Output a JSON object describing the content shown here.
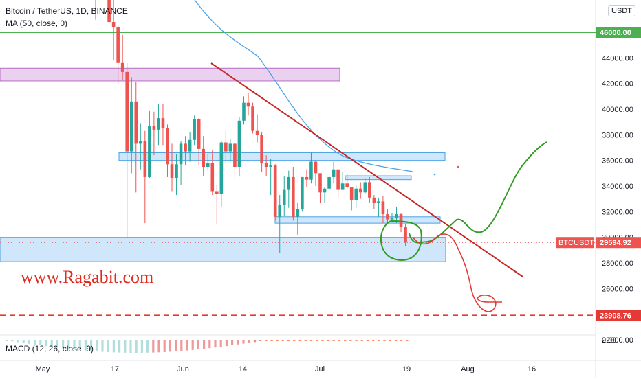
{
  "header": {
    "symbol": "Bitcoin / TetherUS, 1D, BINANCE",
    "ma_label": "MA (50, close, 0)",
    "currency_badge": "USDT"
  },
  "indicator": {
    "macd_label": "MACD (12, 26, close, 9)"
  },
  "watermark": "www.Ragabit.com",
  "colors": {
    "up": "#26a69a",
    "down": "#ef5350",
    "ma": "#4aa3e6",
    "trendline": "#c62828",
    "projection_up": "#2e9e1f",
    "projection_down": "#e53935",
    "support_zone": "#cfe6fb",
    "resistance_zone": "#ead1ef",
    "resistance_line": "#4caf50"
  },
  "chart_data": {
    "type": "candlestick",
    "x_ticks": [
      "May",
      "17",
      "Jun",
      "14",
      "Jul",
      "19",
      "Aug",
      "16"
    ],
    "y_ticks": [
      "22000.00",
      "24000.00",
      "26000.00",
      "28000.00",
      "30000.00",
      "32000.00",
      "34000.00",
      "36000.00",
      "38000.00",
      "40000.00",
      "42000.00",
      "44000.00"
    ],
    "y_range": [
      21000,
      48500
    ],
    "price_labels": [
      {
        "label": "BTCUSDT",
        "value": "29594.92",
        "level": 29594.92,
        "color": "#ef5350"
      },
      {
        "label": "",
        "value": "46000.00",
        "level": 46000,
        "color": "#4caf50"
      },
      {
        "label": "",
        "value": "23908.76",
        "level": 23908.76,
        "color": "#e53935"
      }
    ],
    "candles": [
      {
        "date": "May 12",
        "open": 56700,
        "high": 57800,
        "low": 46980,
        "close": 49500
      },
      {
        "date": "May 13",
        "open": 49500,
        "high": 51300,
        "low": 46000,
        "close": 49700
      },
      {
        "date": "May 14",
        "open": 49700,
        "high": 51500,
        "low": 48800,
        "close": 49900
      },
      {
        "date": "May 15",
        "open": 49900,
        "high": 50700,
        "low": 46700,
        "close": 46800
      },
      {
        "date": "May 16",
        "open": 46800,
        "high": 49700,
        "low": 43800,
        "close": 46400
      },
      {
        "date": "May 17",
        "open": 46400,
        "high": 46600,
        "low": 42000,
        "close": 43600
      },
      {
        "date": "May 18",
        "open": 43600,
        "high": 45800,
        "low": 42300,
        "close": 42900
      },
      {
        "date": "May 19",
        "open": 42900,
        "high": 43600,
        "low": 30000,
        "close": 36700
      },
      {
        "date": "May 20",
        "open": 36700,
        "high": 42500,
        "low": 35000,
        "close": 40600
      },
      {
        "date": "May 21",
        "open": 40600,
        "high": 42100,
        "low": 33500,
        "close": 37300
      },
      {
        "date": "May 22",
        "open": 37300,
        "high": 38900,
        "low": 35300,
        "close": 37500
      },
      {
        "date": "May 23",
        "open": 37500,
        "high": 38300,
        "low": 31100,
        "close": 34700
      },
      {
        "date": "May 24",
        "open": 34700,
        "high": 39900,
        "low": 34600,
        "close": 38700
      },
      {
        "date": "May 25",
        "open": 38700,
        "high": 39800,
        "low": 36400,
        "close": 38400
      },
      {
        "date": "May 26",
        "open": 38400,
        "high": 40400,
        "low": 37200,
        "close": 39300
      },
      {
        "date": "May 27",
        "open": 39300,
        "high": 40400,
        "low": 37200,
        "close": 38500
      },
      {
        "date": "May 28",
        "open": 38500,
        "high": 38800,
        "low": 34700,
        "close": 35700
      },
      {
        "date": "May 29",
        "open": 35700,
        "high": 37300,
        "low": 33600,
        "close": 34600
      },
      {
        "date": "May 30",
        "open": 34600,
        "high": 36500,
        "low": 33300,
        "close": 35700
      },
      {
        "date": "May 31",
        "open": 35700,
        "high": 37500,
        "low": 34100,
        "close": 37300
      },
      {
        "date": "Jun 1",
        "open": 37300,
        "high": 37900,
        "low": 35600,
        "close": 36700
      },
      {
        "date": "Jun 2",
        "open": 36700,
        "high": 38200,
        "low": 35900,
        "close": 37600
      },
      {
        "date": "Jun 3",
        "open": 37600,
        "high": 39500,
        "low": 37200,
        "close": 39200
      },
      {
        "date": "Jun 4",
        "open": 39200,
        "high": 39300,
        "low": 35600,
        "close": 36900
      },
      {
        "date": "Jun 5",
        "open": 36900,
        "high": 37900,
        "low": 34800,
        "close": 35500
      },
      {
        "date": "Jun 6",
        "open": 35500,
        "high": 36500,
        "low": 35300,
        "close": 35800
      },
      {
        "date": "Jun 7",
        "open": 35800,
        "high": 36800,
        "low": 33300,
        "close": 33600
      },
      {
        "date": "Jun 8",
        "open": 33600,
        "high": 34100,
        "low": 31000,
        "close": 33400
      },
      {
        "date": "Jun 9",
        "open": 33400,
        "high": 37500,
        "low": 32400,
        "close": 37400
      },
      {
        "date": "Jun 10",
        "open": 37400,
        "high": 38400,
        "low": 35800,
        "close": 36700
      },
      {
        "date": "Jun 11",
        "open": 36700,
        "high": 37700,
        "low": 35900,
        "close": 37300
      },
      {
        "date": "Jun 12",
        "open": 37300,
        "high": 37400,
        "low": 34600,
        "close": 35500
      },
      {
        "date": "Jun 13",
        "open": 35500,
        "high": 39400,
        "low": 34800,
        "close": 39100
      },
      {
        "date": "Jun 14",
        "open": 39100,
        "high": 41000,
        "low": 38800,
        "close": 40500
      },
      {
        "date": "Jun 15",
        "open": 40500,
        "high": 41300,
        "low": 39500,
        "close": 40200
      },
      {
        "date": "Jun 16",
        "open": 40200,
        "high": 40500,
        "low": 38100,
        "close": 38300
      },
      {
        "date": "Jun 17",
        "open": 38300,
        "high": 39600,
        "low": 37400,
        "close": 38000
      },
      {
        "date": "Jun 18",
        "open": 38000,
        "high": 38200,
        "low": 35100,
        "close": 35800
      },
      {
        "date": "Jun 19",
        "open": 35800,
        "high": 36400,
        "low": 34800,
        "close": 35500
      },
      {
        "date": "Jun 20",
        "open": 35500,
        "high": 36100,
        "low": 33300,
        "close": 35600
      },
      {
        "date": "Jun 21",
        "open": 35600,
        "high": 35700,
        "low": 31300,
        "close": 31600
      },
      {
        "date": "Jun 22",
        "open": 31600,
        "high": 33300,
        "low": 28800,
        "close": 32500
      },
      {
        "date": "Jun 23",
        "open": 32500,
        "high": 34800,
        "low": 31700,
        "close": 33700
      },
      {
        "date": "Jun 24",
        "open": 33700,
        "high": 35200,
        "low": 32300,
        "close": 34700
      },
      {
        "date": "Jun 25",
        "open": 34700,
        "high": 35500,
        "low": 31300,
        "close": 31600
      },
      {
        "date": "Jun 26",
        "open": 31600,
        "high": 32700,
        "low": 30200,
        "close": 32200
      },
      {
        "date": "Jun 27",
        "open": 32200,
        "high": 34700,
        "low": 32000,
        "close": 34700
      },
      {
        "date": "Jun 28",
        "open": 34700,
        "high": 35300,
        "low": 33900,
        "close": 34500
      },
      {
        "date": "Jun 29",
        "open": 34500,
        "high": 36600,
        "low": 34200,
        "close": 35900
      },
      {
        "date": "Jun 30",
        "open": 35900,
        "high": 36000,
        "low": 34000,
        "close": 35000
      },
      {
        "date": "Jul 1",
        "open": 35000,
        "high": 35000,
        "low": 32700,
        "close": 33500
      },
      {
        "date": "Jul 2",
        "open": 33500,
        "high": 33900,
        "low": 32700,
        "close": 33800
      },
      {
        "date": "Jul 3",
        "open": 33800,
        "high": 34900,
        "low": 33300,
        "close": 34700
      },
      {
        "date": "Jul 4",
        "open": 34700,
        "high": 35900,
        "low": 34200,
        "close": 35300
      },
      {
        "date": "Jul 5",
        "open": 35300,
        "high": 35300,
        "low": 33100,
        "close": 33700
      },
      {
        "date": "Jul 6",
        "open": 33700,
        "high": 35100,
        "low": 33700,
        "close": 34200
      },
      {
        "date": "Jul 7",
        "open": 34200,
        "high": 35000,
        "low": 33800,
        "close": 33900
      },
      {
        "date": "Jul 8",
        "open": 33900,
        "high": 33900,
        "low": 32100,
        "close": 32900
      },
      {
        "date": "Jul 9",
        "open": 32900,
        "high": 34100,
        "low": 32300,
        "close": 33800
      },
      {
        "date": "Jul 10",
        "open": 33800,
        "high": 34300,
        "low": 33000,
        "close": 33500
      },
      {
        "date": "Jul 11",
        "open": 33500,
        "high": 34600,
        "low": 33400,
        "close": 34300
      },
      {
        "date": "Jul 12",
        "open": 34300,
        "high": 34700,
        "low": 32700,
        "close": 33100
      },
      {
        "date": "Jul 13",
        "open": 33100,
        "high": 33300,
        "low": 32200,
        "close": 32700
      },
      {
        "date": "Jul 14",
        "open": 32700,
        "high": 33100,
        "low": 31600,
        "close": 32800
      },
      {
        "date": "Jul 15",
        "open": 32800,
        "high": 33200,
        "low": 31100,
        "close": 31800
      },
      {
        "date": "Jul 16",
        "open": 31800,
        "high": 32200,
        "low": 31000,
        "close": 31400
      },
      {
        "date": "Jul 17",
        "open": 31400,
        "high": 31900,
        "low": 31200,
        "close": 31500
      },
      {
        "date": "Jul 18",
        "open": 31500,
        "high": 32400,
        "low": 31100,
        "close": 31800
      },
      {
        "date": "Jul 19",
        "open": 31800,
        "high": 31900,
        "low": 30400,
        "close": 30800
      },
      {
        "date": "Jul 20",
        "open": 30800,
        "high": 31000,
        "low": 29300,
        "close": 29595
      }
    ]
  }
}
